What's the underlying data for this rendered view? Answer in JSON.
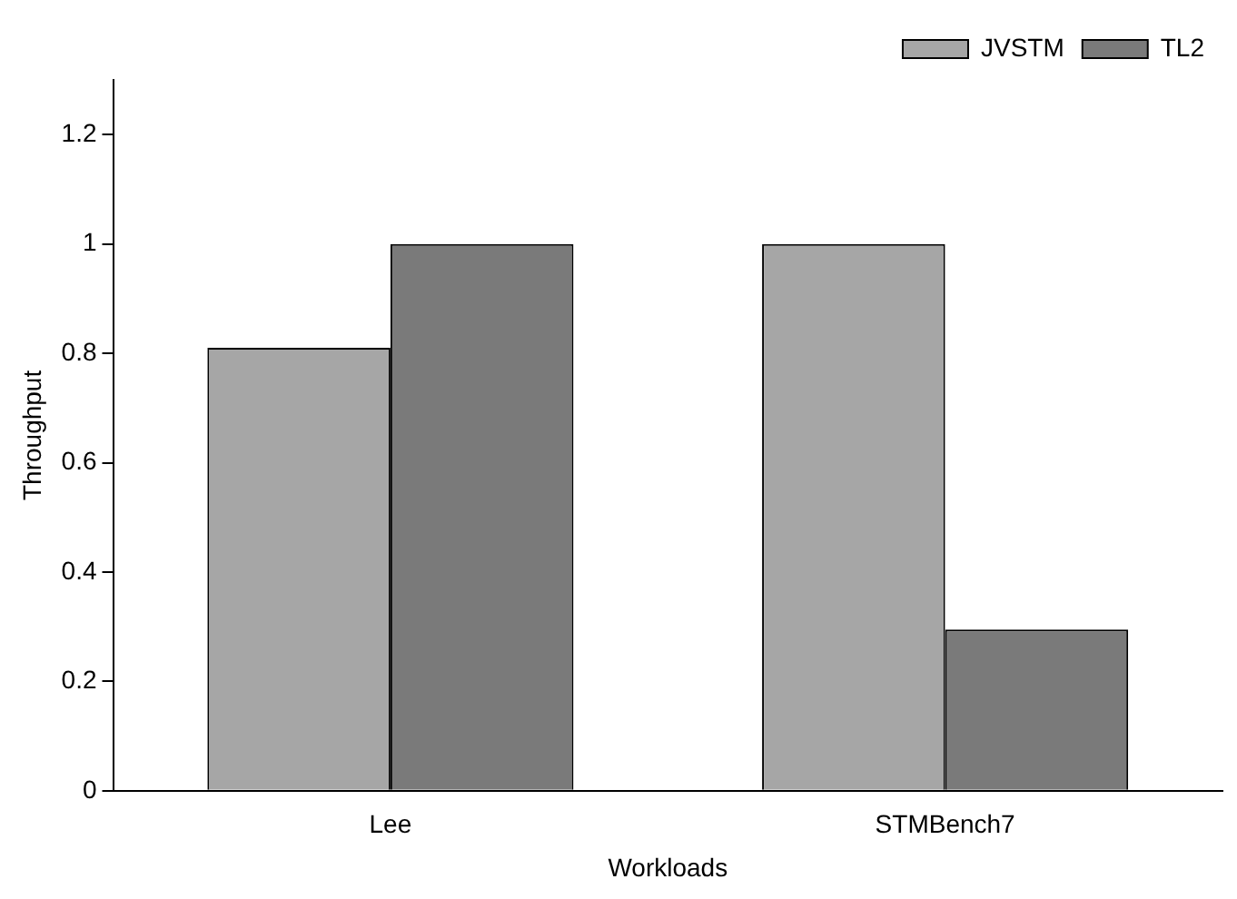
{
  "chart_data": {
    "type": "bar",
    "xlabel": "Workloads",
    "ylabel": "Throughput",
    "categories": [
      "Lee",
      "STMBench7"
    ],
    "series": [
      {
        "name": "JVSTM",
        "color": "#a6a6a6",
        "values": [
          0.81,
          1.0
        ]
      },
      {
        "name": "TL2",
        "color": "#7a7a7a",
        "values": [
          1.0,
          0.295
        ]
      }
    ],
    "ylim": [
      0,
      1.3
    ],
    "yticks": [
      0,
      0.2,
      0.4,
      0.6,
      0.8,
      1,
      1.2
    ],
    "grid": false,
    "legend": "top right"
  }
}
